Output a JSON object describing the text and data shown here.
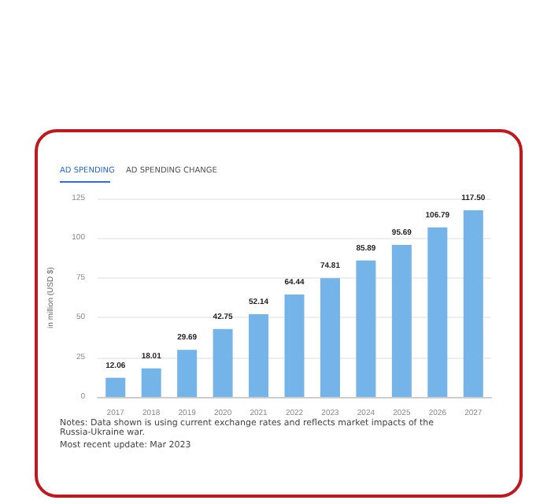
{
  "chart_data": {
    "type": "bar",
    "ylabel": "in million (USD $)",
    "categories": [
      "2017",
      "2018",
      "2019",
      "2020",
      "2021",
      "2022",
      "2023",
      "2024",
      "2025",
      "2026",
      "2027"
    ],
    "values": [
      12.06,
      18.01,
      29.69,
      42.75,
      52.14,
      64.44,
      74.81,
      85.89,
      95.69,
      106.79,
      117.5
    ],
    "value_labels": [
      "12.06",
      "18.01",
      "29.69",
      "42.75",
      "52.14",
      "64.44",
      "74.81",
      "85.89",
      "95.69",
      "106.79",
      "117.50"
    ],
    "color": "#74b4e8",
    "ylim": [
      0,
      125
    ],
    "yticks": [
      0,
      25,
      50,
      75,
      100,
      125
    ],
    "grid": "y",
    "annotations": [
      "AD SPENDING",
      "AD SPENDING CHANGE",
      "Notes: Data shown is using current exchange rates and reflects market impacts of the Russia-Ukraine war.",
      "Most recent update: Mar 2023"
    ]
  }
}
